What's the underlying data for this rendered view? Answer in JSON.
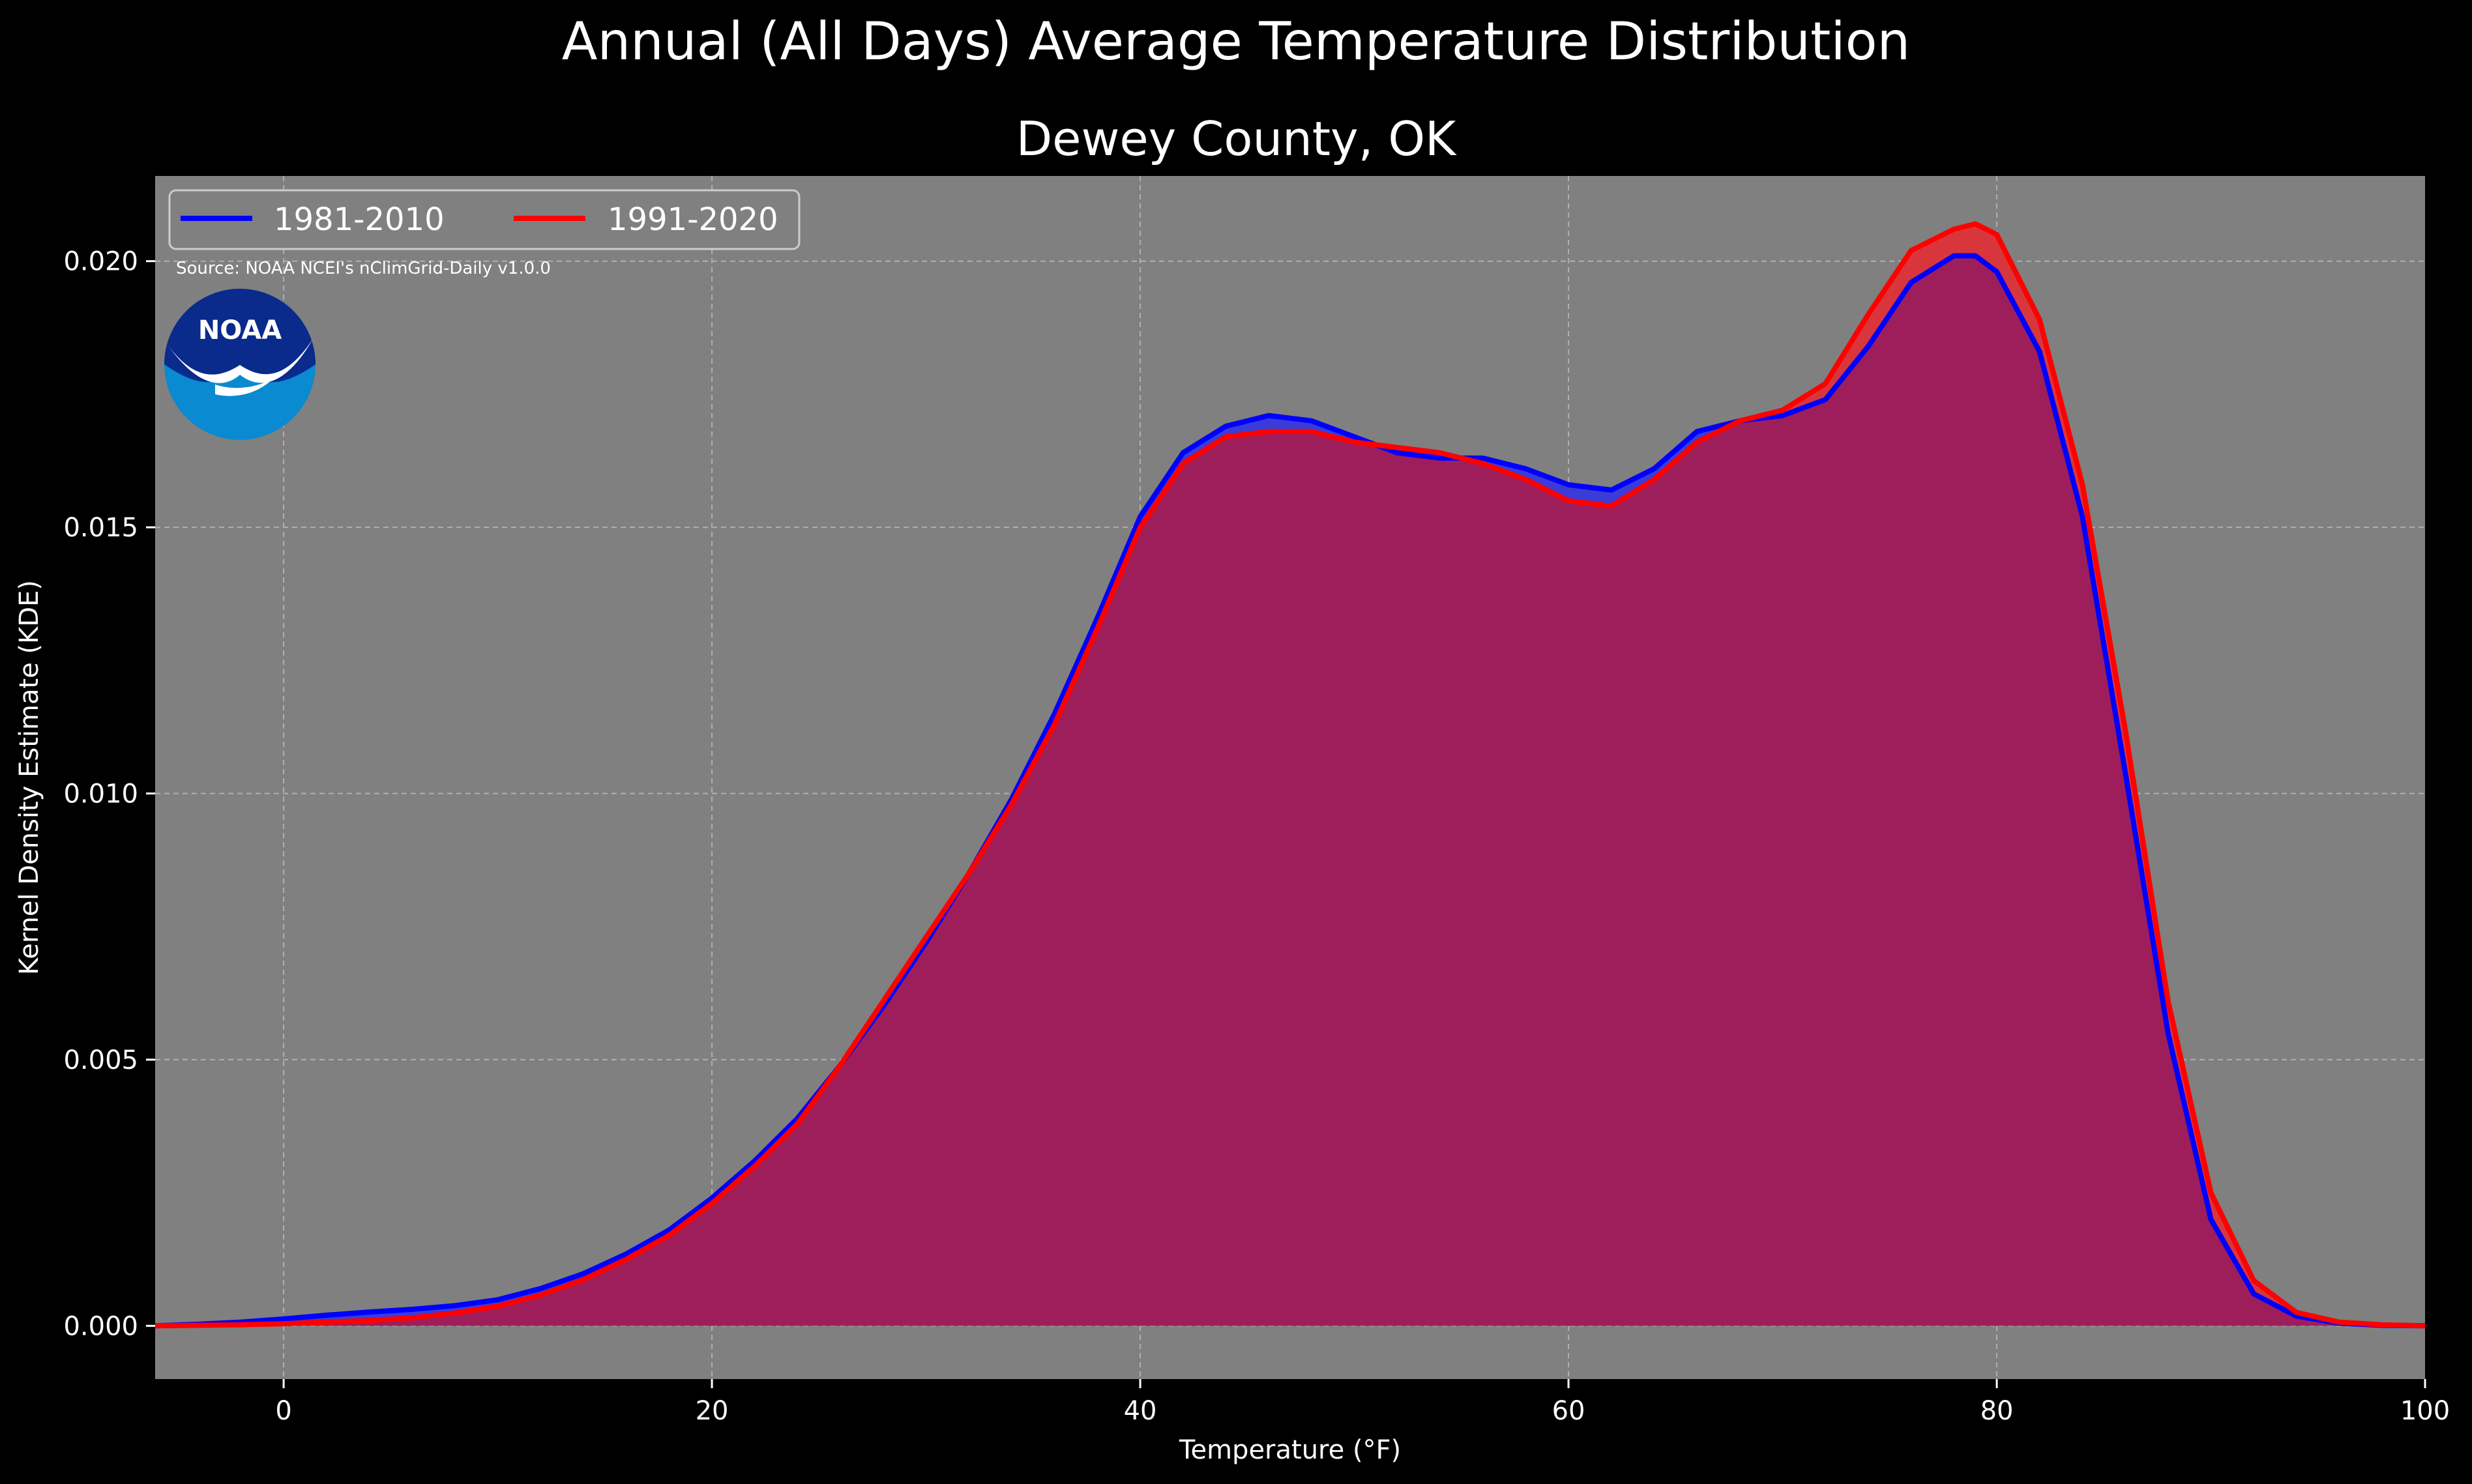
{
  "title": "Annual (All Days) Average Temperature Distribution",
  "subtitle": "Dewey County, OK",
  "source": "Source: NOAA NCEI's nClimGrid-Daily v1.0.0",
  "logo_text": "NOAA",
  "colors": {
    "background": "#000000",
    "plot_background": "#808080",
    "series_1981": "#0000ff",
    "series_1991": "#ff0000",
    "fill_1981": "#3b3bd8",
    "fill_1991": "#d8363c",
    "overlap_fill": "#9e1e5c",
    "logo_blue": "#0a2a8c",
    "logo_light_blue": "#0a8ad0"
  },
  "chart_data": {
    "type": "area",
    "title": "Annual (All Days) Average Temperature Distribution",
    "subtitle": "Dewey County, OK",
    "xlabel": "Temperature (°F)",
    "ylabel": "Kernel Density Estimate (KDE)",
    "xlim": [
      -6,
      100
    ],
    "ylim": [
      -0.001,
      0.0216
    ],
    "xticks": [
      0,
      20,
      40,
      60,
      80,
      100
    ],
    "yticks": [
      0.0,
      0.005,
      0.01,
      0.015,
      0.02
    ],
    "xtick_labels": [
      "0",
      "20",
      "40",
      "60",
      "80",
      "100"
    ],
    "ytick_labels": [
      "0.000",
      "0.005",
      "0.010",
      "0.015",
      "0.020"
    ],
    "grid": true,
    "legend_position": "top-left",
    "x": [
      -6,
      -4,
      -2,
      0,
      2,
      4,
      6,
      8,
      10,
      12,
      14,
      16,
      18,
      20,
      22,
      24,
      26,
      28,
      30,
      32,
      34,
      36,
      38,
      40,
      42,
      44,
      46,
      48,
      50,
      52,
      54,
      56,
      58,
      60,
      62,
      64,
      66,
      68,
      70,
      72,
      74,
      76,
      78,
      79,
      80,
      82,
      84,
      86,
      88,
      90,
      92,
      94,
      96,
      98,
      100
    ],
    "series": [
      {
        "name": "1981-2010",
        "values": [
          0.0,
          3e-05,
          7e-05,
          0.00013,
          0.0002,
          0.00026,
          0.00031,
          0.00038,
          0.00049,
          0.0007,
          0.00098,
          0.00135,
          0.0018,
          0.0024,
          0.0031,
          0.0039,
          0.0049,
          0.006,
          0.0072,
          0.0085,
          0.0099,
          0.0115,
          0.0133,
          0.0152,
          0.0164,
          0.0169,
          0.0171,
          0.017,
          0.0167,
          0.0164,
          0.0163,
          0.0163,
          0.0161,
          0.0158,
          0.0157,
          0.0161,
          0.0168,
          0.017,
          0.0171,
          0.0174,
          0.0184,
          0.0196,
          0.0201,
          0.0201,
          0.0198,
          0.0183,
          0.0152,
          0.0104,
          0.0055,
          0.002,
          0.0006,
          0.00018,
          5e-05,
          1e-05,
          0.0
        ]
      },
      {
        "name": "1991-2020",
        "values": [
          0.0,
          1e-05,
          2e-05,
          4e-05,
          7e-05,
          0.0001,
          0.00015,
          0.00024,
          0.00037,
          0.00058,
          0.00087,
          0.00125,
          0.0017,
          0.0023,
          0.003,
          0.0038,
          0.0049,
          0.0061,
          0.0073,
          0.0085,
          0.0098,
          0.0113,
          0.0131,
          0.015,
          0.0162,
          0.0167,
          0.0168,
          0.0168,
          0.0166,
          0.0165,
          0.0164,
          0.0162,
          0.0159,
          0.0155,
          0.0154,
          0.0159,
          0.0166,
          0.017,
          0.0172,
          0.0177,
          0.019,
          0.0202,
          0.0206,
          0.0207,
          0.0205,
          0.0189,
          0.0158,
          0.0112,
          0.0061,
          0.0025,
          0.00085,
          0.00025,
          7e-05,
          2e-05,
          0.0
        ]
      }
    ]
  }
}
